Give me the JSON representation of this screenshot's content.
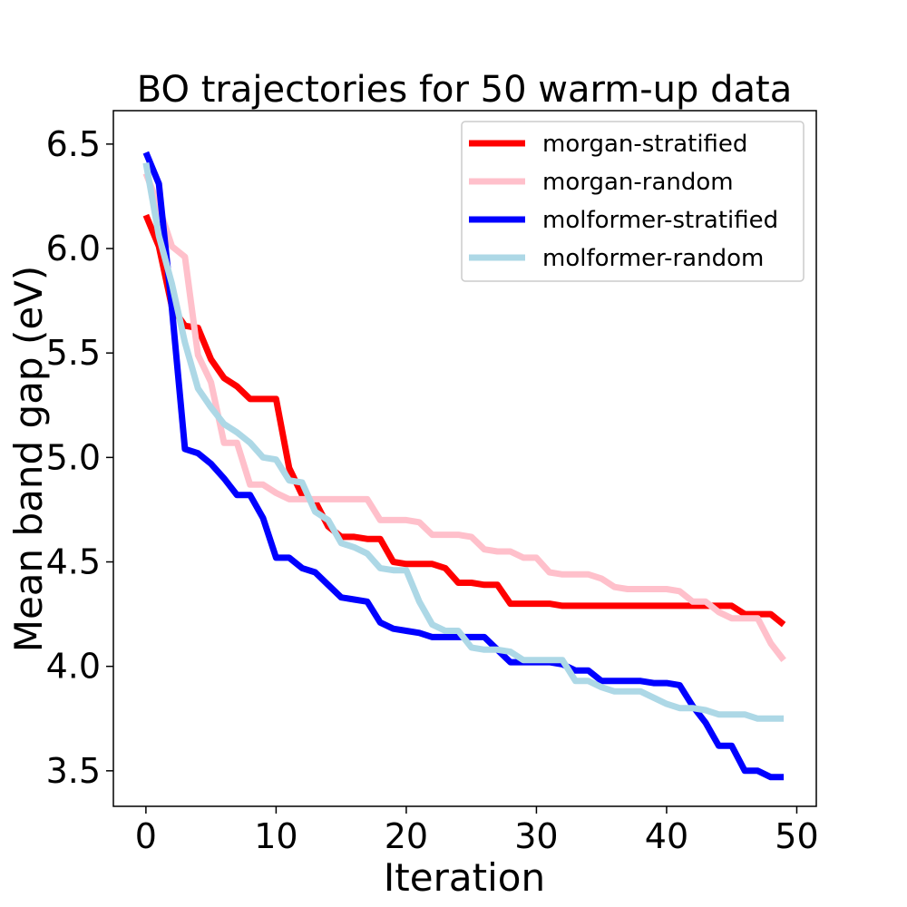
{
  "chart_data": {
    "type": "line",
    "title": "BO trajectories for 50 warm-up data",
    "xlabel": "Iteration",
    "ylabel": "Mean band gap (eV)",
    "xlim": [
      -2.5,
      51.5
    ],
    "ylim": [
      3.33,
      6.66
    ],
    "xticks": [
      0,
      10,
      20,
      30,
      40,
      50
    ],
    "yticks": [
      3.5,
      4.0,
      4.5,
      5.0,
      5.5,
      6.0,
      6.5
    ],
    "xtick_labels": [
      "0",
      "10",
      "20",
      "30",
      "40",
      "50"
    ],
    "ytick_labels": [
      "3.5",
      "4.0",
      "4.5",
      "5.0",
      "5.5",
      "6.0",
      "6.5"
    ],
    "grid": false,
    "legend_position": "top-right",
    "series": [
      {
        "name": "morgan-stratified",
        "color": "#ff0000",
        "x": [
          0,
          1,
          2,
          3,
          4,
          5,
          6,
          7,
          8,
          9,
          10,
          11,
          12,
          13,
          14,
          15,
          16,
          17,
          18,
          19,
          20,
          21,
          22,
          23,
          24,
          25,
          26,
          27,
          28,
          29,
          30,
          31,
          32,
          33,
          34,
          35,
          36,
          37,
          38,
          39,
          40,
          41,
          42,
          43,
          44,
          45,
          46,
          47,
          48,
          49
        ],
        "values": [
          6.16,
          6.01,
          5.72,
          5.63,
          5.62,
          5.47,
          5.38,
          5.34,
          5.28,
          5.28,
          5.28,
          4.95,
          4.82,
          4.79,
          4.67,
          4.62,
          4.62,
          4.61,
          4.61,
          4.5,
          4.49,
          4.49,
          4.49,
          4.47,
          4.4,
          4.4,
          4.39,
          4.39,
          4.3,
          4.3,
          4.3,
          4.3,
          4.29,
          4.29,
          4.29,
          4.29,
          4.29,
          4.29,
          4.29,
          4.29,
          4.29,
          4.29,
          4.29,
          4.29,
          4.29,
          4.29,
          4.25,
          4.25,
          4.25,
          4.2
        ]
      },
      {
        "name": "morgan-random",
        "color": "#ffc0cb",
        "x": [
          0,
          1,
          2,
          3,
          4,
          5,
          6,
          7,
          8,
          9,
          10,
          11,
          12,
          13,
          14,
          15,
          16,
          17,
          18,
          19,
          20,
          21,
          22,
          23,
          24,
          25,
          26,
          27,
          28,
          29,
          30,
          31,
          32,
          33,
          34,
          35,
          36,
          37,
          38,
          39,
          40,
          41,
          42,
          43,
          44,
          45,
          46,
          47,
          48,
          49
        ],
        "values": [
          6.36,
          6.2,
          6.01,
          5.96,
          5.49,
          5.36,
          5.07,
          5.07,
          4.87,
          4.87,
          4.83,
          4.8,
          4.8,
          4.8,
          4.8,
          4.8,
          4.8,
          4.8,
          4.7,
          4.7,
          4.7,
          4.69,
          4.63,
          4.63,
          4.63,
          4.62,
          4.56,
          4.55,
          4.55,
          4.52,
          4.52,
          4.45,
          4.44,
          4.44,
          4.44,
          4.42,
          4.38,
          4.37,
          4.37,
          4.37,
          4.37,
          4.36,
          4.31,
          4.31,
          4.26,
          4.23,
          4.23,
          4.23,
          4.11,
          4.03
        ]
      },
      {
        "name": "molformer-stratified",
        "color": "#0000ff",
        "x": [
          0,
          1,
          2,
          3,
          4,
          5,
          6,
          7,
          8,
          9,
          10,
          11,
          12,
          13,
          14,
          15,
          16,
          17,
          18,
          19,
          20,
          21,
          22,
          23,
          24,
          25,
          26,
          27,
          28,
          29,
          30,
          31,
          32,
          33,
          34,
          35,
          36,
          37,
          38,
          39,
          40,
          41,
          42,
          43,
          44,
          45,
          46,
          47,
          48,
          49
        ],
        "values": [
          6.46,
          6.31,
          5.71,
          5.04,
          5.02,
          4.97,
          4.9,
          4.82,
          4.82,
          4.71,
          4.52,
          4.52,
          4.47,
          4.45,
          4.39,
          4.33,
          4.32,
          4.31,
          4.21,
          4.18,
          4.17,
          4.16,
          4.14,
          4.14,
          4.14,
          4.14,
          4.14,
          4.08,
          4.02,
          4.02,
          4.02,
          4.02,
          4.01,
          3.98,
          3.98,
          3.93,
          3.93,
          3.93,
          3.93,
          3.92,
          3.92,
          3.91,
          3.81,
          3.73,
          3.62,
          3.62,
          3.5,
          3.5,
          3.47,
          3.47
        ]
      },
      {
        "name": "molformer-random",
        "color": "#add8e6",
        "x": [
          0,
          1,
          2,
          3,
          4,
          5,
          6,
          7,
          8,
          9,
          10,
          11,
          12,
          13,
          14,
          15,
          16,
          17,
          18,
          19,
          20,
          21,
          22,
          23,
          24,
          25,
          26,
          27,
          28,
          29,
          30,
          31,
          32,
          33,
          34,
          35,
          36,
          37,
          38,
          39,
          40,
          41,
          42,
          43,
          44,
          45,
          46,
          47,
          48,
          49
        ],
        "values": [
          6.41,
          6.06,
          5.83,
          5.55,
          5.33,
          5.24,
          5.16,
          5.12,
          5.07,
          5.0,
          4.99,
          4.89,
          4.88,
          4.74,
          4.7,
          4.59,
          4.57,
          4.54,
          4.47,
          4.46,
          4.46,
          4.31,
          4.2,
          4.17,
          4.17,
          4.09,
          4.08,
          4.08,
          4.07,
          4.03,
          4.03,
          4.03,
          4.03,
          3.93,
          3.93,
          3.9,
          3.88,
          3.88,
          3.88,
          3.85,
          3.82,
          3.8,
          3.8,
          3.79,
          3.77,
          3.77,
          3.77,
          3.75,
          3.75,
          3.75
        ]
      }
    ]
  }
}
